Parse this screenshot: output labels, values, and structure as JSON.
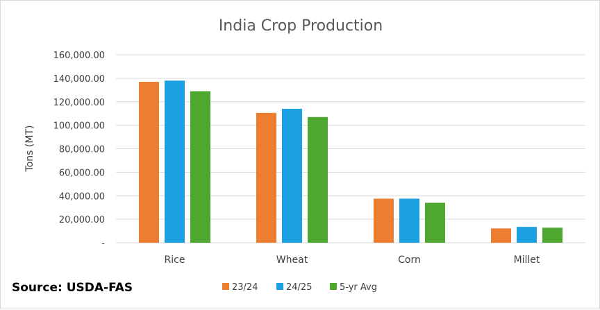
{
  "chart_data": {
    "type": "bar",
    "title": "India Crop Production",
    "ylabel": "Tons (MT)",
    "xlabel": "",
    "categories": [
      "Rice",
      "Wheat",
      "Corn",
      "Millet"
    ],
    "series": [
      {
        "name": "23/24",
        "color": "#ED7D31",
        "values": [
          137000,
          110500,
          37500,
          12200
        ]
      },
      {
        "name": "24/25",
        "color": "#1BA1E2",
        "values": [
          138000,
          114000,
          37500,
          13500
        ]
      },
      {
        "name": "5-yr Avg",
        "color": "#4EA72E",
        "values": [
          129000,
          107000,
          34000,
          12800
        ]
      }
    ],
    "ylim": [
      0,
      160000
    ],
    "yticks": [
      0,
      20000,
      40000,
      60000,
      80000,
      100000,
      120000,
      140000,
      160000
    ],
    "ytick_labels": [
      "-",
      "20,000.00",
      "40,000.00",
      "60,000.00",
      "80,000.00",
      "100,000.00",
      "120,000.00",
      "140,000.00",
      "160,000.00"
    ],
    "grid": true,
    "legend_position": "bottom"
  },
  "source_note": "Source: USDA-FAS"
}
